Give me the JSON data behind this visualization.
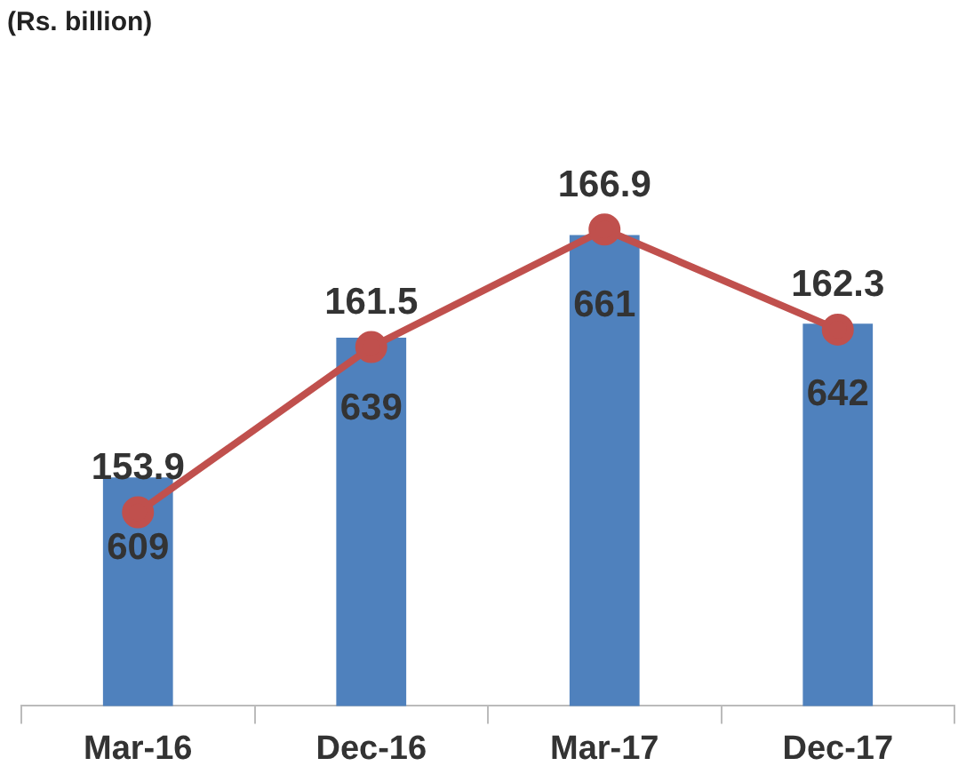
{
  "chart_data": {
    "type": "bar",
    "title": "(Rs. billion)",
    "categories": [
      "Mar-16",
      "Dec-16",
      "Mar-17",
      "Dec-17"
    ],
    "series": [
      {
        "color": "#4f81bd",
        "values": [
          609,
          639,
          661,
          642
        ]
      },
      {
        "type": "line",
        "axis": "y2",
        "color": "#c0504d",
        "values": [
          153.9,
          161.5,
          166.9,
          162.3
        ]
      }
    ],
    "data_labels": true,
    "grid": false,
    "legend": false,
    "marker": "circle",
    "line_style": "solid",
    "tick_labels": "x"
  }
}
